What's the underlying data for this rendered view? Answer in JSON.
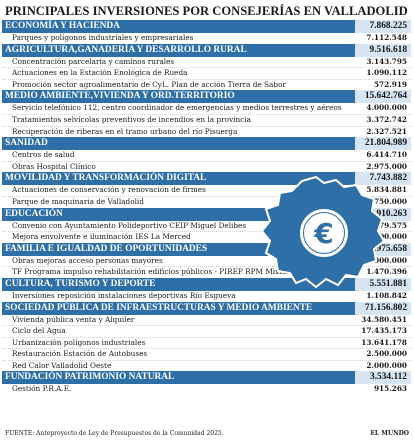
{
  "title": "PRINCIPALES INVERSIONES POR CONSEJERÍAS EN VALLADOLID",
  "sections": [
    {
      "name": "ECONOMÍA Y HACIENDA",
      "amount": "7.868.225",
      "items": [
        {
          "label": "Parques y polígonos industriales y empresariales",
          "amount": "7.112.548"
        }
      ]
    },
    {
      "name": "AGRICULTURA,GANADERÍA Y DESARROLLO RURAL",
      "amount": "9.516.618",
      "items": [
        {
          "label": "Concentración parcelaria y caminos rurales",
          "amount": "3.143.795"
        },
        {
          "label": "Actuaciones en la Estación Enológica de Rueda",
          "amount": "1.090.112"
        },
        {
          "label": "Promoción sector agroalimentario de CyL. Plan de acción Tierra de Sabor",
          "amount": "572.919"
        }
      ]
    },
    {
      "name": "MEDIO AMBIENTE,VIVIENDA Y ORD.TERRITORIO",
      "amount": "15.642.764",
      "items": [
        {
          "label": "Servicio telefónico 112, centro coordinador de emergencias y medios terrestres y aéreos",
          "amount": "4.000.000"
        },
        {
          "label": "Tratamientos selvícolas preventivos de incendios en la provincia",
          "amount": "3.372.742"
        },
        {
          "label": "Recuperación de riberas en el tramo urbano del río Pisuerga",
          "amount": "2.327.521"
        }
      ]
    },
    {
      "name": "SANIDAD",
      "amount": "21.804.989",
      "items": [
        {
          "label": "Centros de salud",
          "amount": "6.414.710"
        },
        {
          "label": "Obras Hospital Clínico",
          "amount": "2.975.000"
        }
      ]
    },
    {
      "name": "MOVILIDAD Y TRANSFORMACIÓN DIGITAL",
      "amount": "7.743.882",
      "items": [
        {
          "label": "Actuaciones de conservación y renovación de firmes",
          "amount": "5.834.881"
        },
        {
          "label": "Parque de maquinaria de Valladolid",
          "amount": "750.000"
        }
      ]
    },
    {
      "name": "EDUCACIÓN",
      "amount": "13.910.263",
      "items": [
        {
          "label": "Convenio con Ayuntamiento Polideportivo CEIP Miguel Delibes",
          "amount": "1.979.575"
        },
        {
          "label": "Mejora envolvente e iluminación IES La Merced",
          "amount": "1.600.000"
        }
      ]
    },
    {
      "name": "FAMILIA E IGUALDAD DE OPORTUNIDADES",
      "amount": "3.975.658",
      "items": [
        {
          "label": "Obras mejoras acceso personas mayores",
          "amount": "2.000.000"
        },
        {
          "label": "TF Programa impulso rehabilitación edificios públicos - PIREP RPM Mixta Parquesol",
          "amount": "1.470.396"
        }
      ]
    },
    {
      "name": "CULTURA, TURISMO Y DEPORTE",
      "amount": "5.551.881",
      "items": [
        {
          "label": "Inversiones reposición instalaciones deportivas Río Esgueva",
          "amount": "1.108.842"
        }
      ]
    },
    {
      "name": "SOCIEDAD PÚBLICA DE INFRAESTRUCTURAS Y MEDIO AMBIENTE",
      "amount": "71.156.802",
      "items": [
        {
          "label": "Vivienda pública venta y Alquiler",
          "amount": "34.580.451"
        },
        {
          "label": "Ciclo del Agua",
          "amount": "17.435.173"
        },
        {
          "label": "Urbanización polígonos industriales",
          "amount": "13.641.178"
        },
        {
          "label": "Restauración Estación de Autobuses",
          "amount": "2.500.000"
        },
        {
          "label": "Red Calor Valladolid Oeste",
          "amount": "2.000.000"
        }
      ]
    },
    {
      "name": "FUNDACIÓN PATRIMONIO NATURAL",
      "amount": "3.534.112",
      "items": [
        {
          "label": "Gestión P.R.A.E.",
          "amount": "915.263"
        }
      ]
    }
  ],
  "footer": {
    "source": "FUENTE: Anteproyecto de Ley de Presupuestos de la Comunidad 2025.",
    "brand": "EL MUNDO"
  },
  "emblem": {
    "symbol": "€",
    "colors": {
      "fill": "#2f6fa7",
      "outline": "#ffffff"
    }
  },
  "colors": {
    "header_bg": "#2f6fa7",
    "amount_bg": "#d7e5f2"
  }
}
